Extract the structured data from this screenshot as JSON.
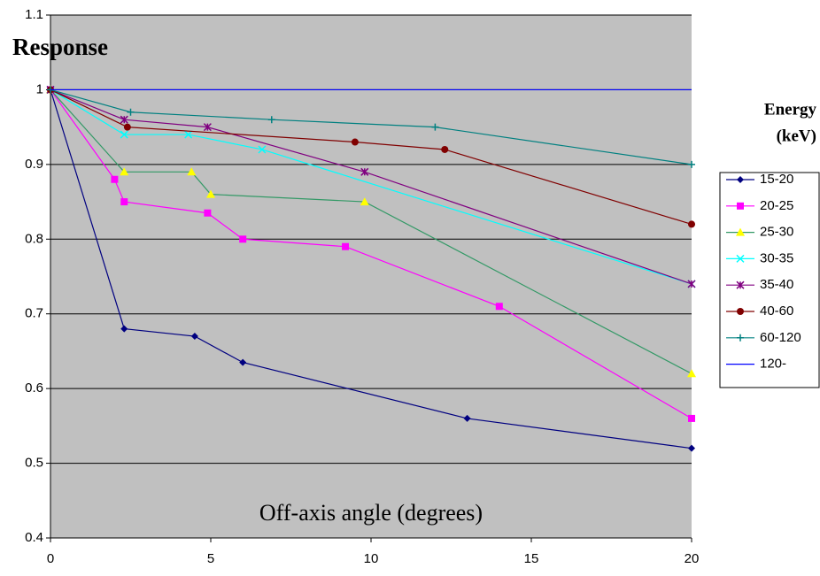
{
  "chart_data": {
    "type": "line",
    "title": "Response",
    "x_label": "Off-axis angle (degrees)",
    "legend_title": [
      "Energy",
      "(keV)"
    ],
    "legend_position": "right",
    "plot_background": "#c0c0c0",
    "grid": true,
    "xlim": [
      0,
      20
    ],
    "xticks": [
      0,
      5,
      10,
      15,
      20
    ],
    "ylim": [
      0.4,
      1.1
    ],
    "yticks": [
      0.4,
      0.5,
      0.6,
      0.7,
      0.8,
      0.9,
      1,
      1.1
    ],
    "series": [
      {
        "name": "15-20",
        "color": "#000080",
        "line_color": "#000080",
        "marker": "diamond",
        "x": [
          0,
          2.3,
          4.5,
          6.0,
          13.0,
          20
        ],
        "values": [
          1,
          0.68,
          0.67,
          0.635,
          0.56,
          0.52
        ]
      },
      {
        "name": "20-25",
        "color": "#ff00ff",
        "line_color": "#ff00ff",
        "marker": "square",
        "x": [
          0,
          2.0,
          2.3,
          4.9,
          6.0,
          9.2,
          14.0,
          20
        ],
        "values": [
          1,
          0.88,
          0.85,
          0.835,
          0.8,
          0.79,
          0.71,
          0.56
        ]
      },
      {
        "name": "25-30",
        "color": "#ffff00",
        "line_color": "#339966",
        "marker": "triangle",
        "x": [
          0,
          2.3,
          4.4,
          5.0,
          9.8,
          20
        ],
        "values": [
          1,
          0.89,
          0.89,
          0.86,
          0.85,
          0.62
        ]
      },
      {
        "name": "30-35",
        "color": "#00ffff",
        "line_color": "#00ffff",
        "marker": "x",
        "x": [
          0,
          2.3,
          4.3,
          6.6,
          20
        ],
        "values": [
          1,
          0.94,
          0.94,
          0.92,
          0.74
        ]
      },
      {
        "name": "35-40",
        "color": "#800080",
        "line_color": "#800080",
        "marker": "star",
        "x": [
          0,
          2.3,
          4.9,
          9.8,
          20
        ],
        "values": [
          1,
          0.96,
          0.95,
          0.89,
          0.74
        ]
      },
      {
        "name": "40-60",
        "color": "#800000",
        "line_color": "#800000",
        "marker": "circle",
        "x": [
          0,
          2.4,
          9.5,
          12.3,
          20
        ],
        "values": [
          1,
          0.95,
          0.93,
          0.92,
          0.82
        ]
      },
      {
        "name": "60-120",
        "color": "#008080",
        "line_color": "#008080",
        "marker": "plus",
        "x": [
          0,
          2.5,
          6.9,
          12.0,
          20
        ],
        "values": [
          1,
          0.97,
          0.96,
          0.95,
          0.9
        ]
      },
      {
        "name": "120-",
        "color": "#0000ff",
        "line_color": "#0000ff",
        "marker": "none",
        "x": [
          0,
          20
        ],
        "values": [
          1,
          1
        ]
      }
    ]
  }
}
